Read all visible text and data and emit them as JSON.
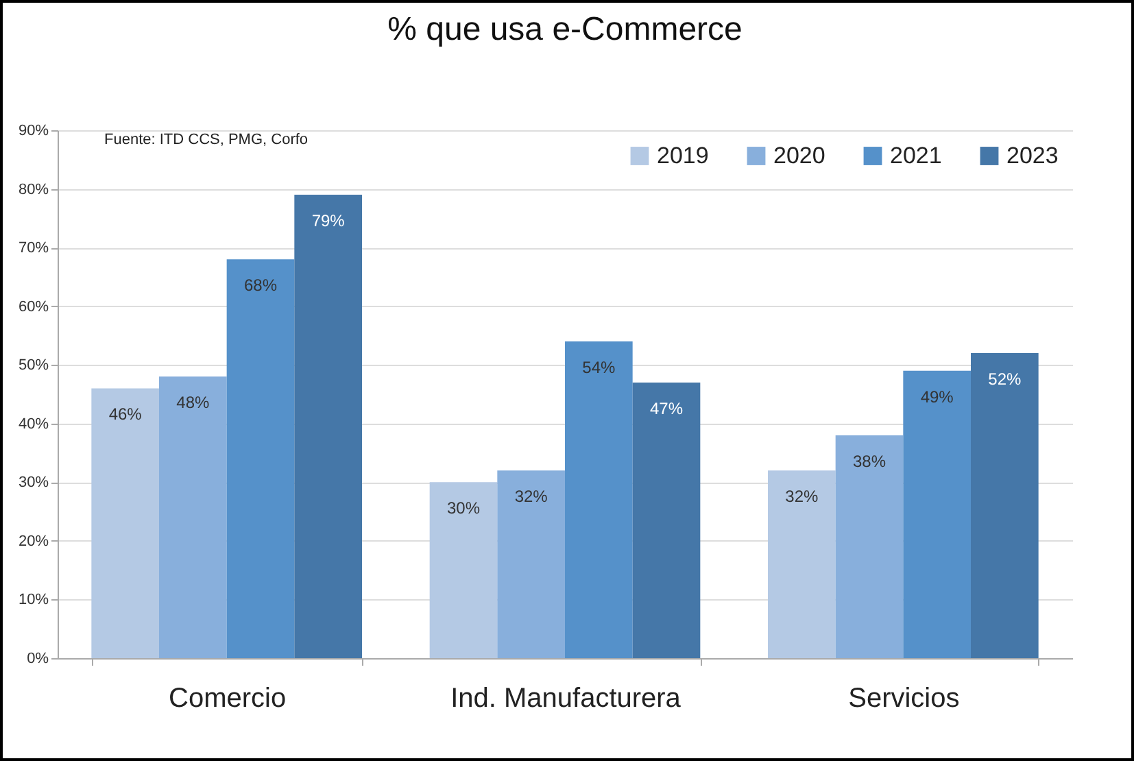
{
  "chart_data": {
    "type": "bar",
    "title": "% que usa e-Commerce",
    "categories": [
      "Comercio",
      "Ind. Manufacturera",
      "Servicios"
    ],
    "series": [
      {
        "name": "2019",
        "color": "#b4c9e4",
        "values": [
          46,
          30,
          32
        ],
        "value_labels": [
          "46%",
          "30%",
          "32%"
        ]
      },
      {
        "name": "2020",
        "color": "#88afdc",
        "values": [
          48,
          32,
          38
        ],
        "value_labels": [
          "48%",
          "32%",
          "38%"
        ]
      },
      {
        "name": "2021",
        "color": "#5591ca",
        "values": [
          68,
          54,
          49
        ],
        "value_labels": [
          "68%",
          "54%",
          "49%"
        ]
      },
      {
        "name": "2023",
        "color": "#4577a8",
        "values": [
          79,
          47,
          52
        ],
        "value_labels": [
          "79%",
          "47%",
          "52%"
        ]
      }
    ],
    "ylim": [
      0,
      90
    ],
    "yticks": [
      {
        "value": 0,
        "label": "0%"
      },
      {
        "value": 10,
        "label": "10%"
      },
      {
        "value": 20,
        "label": "20%"
      },
      {
        "value": 30,
        "label": "30%"
      },
      {
        "value": 40,
        "label": "40%"
      },
      {
        "value": 50,
        "label": "50%"
      },
      {
        "value": 60,
        "label": "60%"
      },
      {
        "value": 70,
        "label": "70%"
      },
      {
        "value": 80,
        "label": "80%"
      },
      {
        "value": 90,
        "label": "90%"
      }
    ],
    "grid": "y",
    "legend": "top right",
    "annotations": [
      "Fuente: ITD CCS, PMG, Corfo"
    ]
  }
}
